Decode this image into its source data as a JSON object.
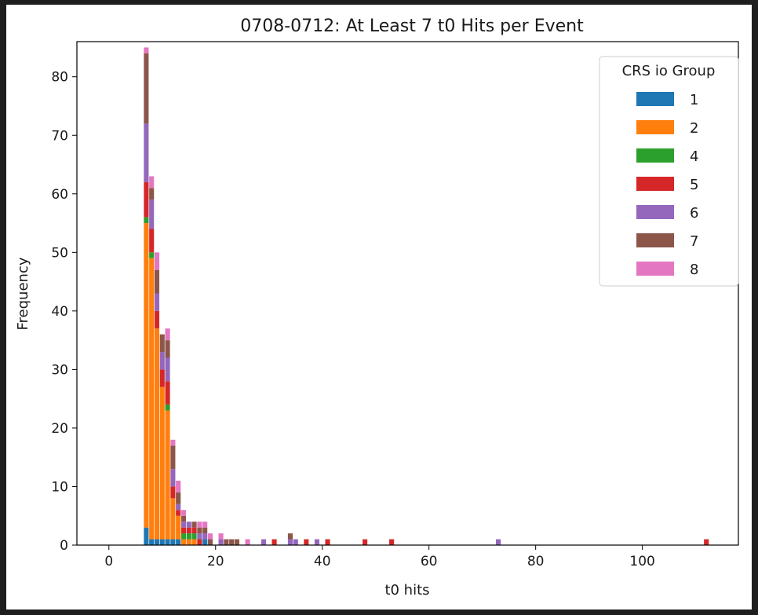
{
  "chart_data": {
    "type": "bar",
    "stacked": true,
    "title": "0708-0712: At Least 7 t0 Hits per Event",
    "xlabel": "t0 hits",
    "ylabel": "Frequency",
    "xlim": [
      -6,
      118
    ],
    "ylim": [
      0,
      86
    ],
    "xticks": [
      0,
      20,
      40,
      60,
      80,
      100
    ],
    "yticks": [
      0,
      10,
      20,
      30,
      40,
      50,
      60,
      70,
      80
    ],
    "grid": false,
    "bin_width": 0.9,
    "legend": {
      "title": "CRS io Group",
      "position": "top-right"
    },
    "x": [
      7,
      8,
      9,
      10,
      11,
      12,
      13,
      14,
      15,
      16,
      17,
      18,
      19,
      21,
      22,
      23,
      24,
      26,
      29,
      31,
      34,
      35,
      37,
      39,
      41,
      48,
      53,
      73,
      112
    ],
    "series": [
      {
        "name": "1",
        "color": "#1f77b4",
        "values": [
          3,
          1,
          1,
          1,
          1,
          1,
          1,
          0,
          0,
          0,
          0,
          1,
          0,
          0,
          0,
          0,
          0,
          0,
          0,
          0,
          0,
          0,
          0,
          0,
          0,
          0,
          0,
          0,
          0
        ]
      },
      {
        "name": "2",
        "color": "#ff7f0e",
        "values": [
          52,
          48,
          36,
          26,
          22,
          7,
          4,
          1,
          1,
          1,
          0,
          0,
          0,
          0,
          0,
          0,
          0,
          0,
          0,
          0,
          0,
          0,
          0,
          0,
          0,
          0,
          0,
          0,
          0
        ]
      },
      {
        "name": "4",
        "color": "#2ca02c",
        "values": [
          1,
          1,
          0,
          0,
          1,
          0,
          0,
          1,
          1,
          1,
          0,
          0,
          0,
          0,
          0,
          0,
          0,
          0,
          0,
          0,
          0,
          0,
          0,
          0,
          0,
          0,
          0,
          0,
          0
        ]
      },
      {
        "name": "5",
        "color": "#d62728",
        "values": [
          6,
          4,
          3,
          3,
          4,
          2,
          1,
          1,
          1,
          1,
          1,
          0,
          0,
          0,
          0,
          0,
          0,
          0,
          0,
          1,
          0,
          0,
          1,
          0,
          1,
          1,
          1,
          0,
          1
        ]
      },
      {
        "name": "6",
        "color": "#9467bd",
        "values": [
          10,
          5,
          3,
          3,
          4,
          3,
          1,
          1,
          1,
          0,
          1,
          1,
          0,
          1,
          0,
          0,
          0,
          0,
          1,
          0,
          1,
          1,
          0,
          1,
          0,
          0,
          0,
          1,
          0
        ]
      },
      {
        "name": "7",
        "color": "#8c564b",
        "values": [
          12,
          2,
          4,
          3,
          3,
          4,
          2,
          1,
          0,
          1,
          1,
          1,
          1,
          0,
          1,
          1,
          1,
          0,
          0,
          0,
          1,
          0,
          0,
          0,
          0,
          0,
          0,
          0,
          0
        ]
      },
      {
        "name": "8",
        "color": "#e377c2",
        "values": [
          1,
          2,
          3,
          0,
          2,
          1,
          2,
          1,
          0,
          0,
          1,
          1,
          1,
          1,
          0,
          0,
          0,
          1,
          0,
          0,
          0,
          0,
          0,
          0,
          0,
          0,
          0,
          0,
          0
        ]
      }
    ]
  }
}
